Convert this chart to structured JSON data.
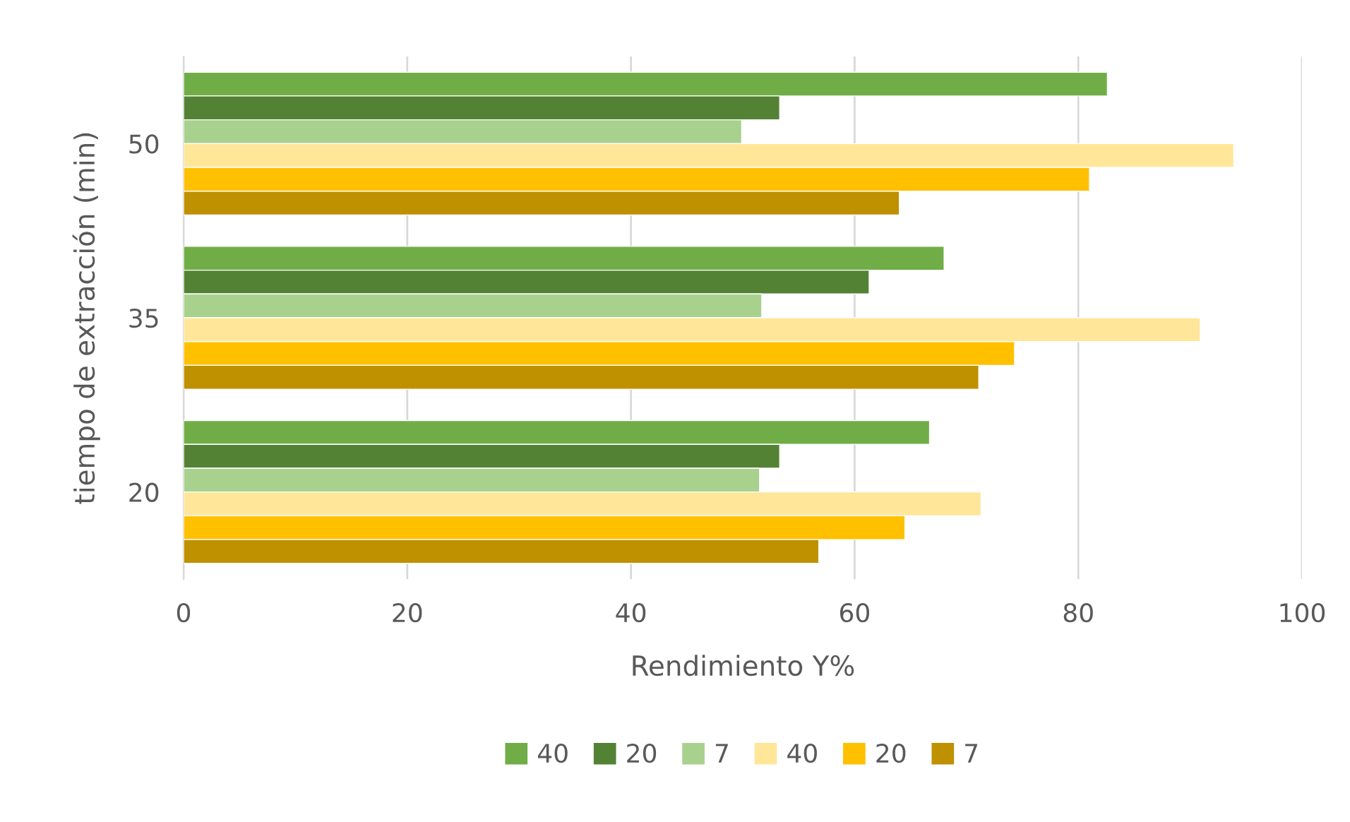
{
  "chart_data": {
    "type": "bar",
    "orientation": "horizontal",
    "xlabel": "Rendimiento Y%",
    "ylabel": "tiempo de extracción (min)",
    "categories": [
      "50",
      "35",
      "20"
    ],
    "series": [
      {
        "name": "40",
        "color": "#70ad47",
        "values": [
          82.6,
          68.0,
          66.7
        ]
      },
      {
        "name": "20",
        "color": "#548235",
        "values": [
          53.3,
          61.3,
          53.3
        ]
      },
      {
        "name": "7",
        "color": "#a9d18e",
        "values": [
          49.9,
          51.7,
          51.5
        ]
      },
      {
        "name": "40",
        "color": "#ffe699",
        "values": [
          93.9,
          90.9,
          71.3
        ]
      },
      {
        "name": "20",
        "color": "#ffc000",
        "values": [
          81.0,
          74.3,
          64.5
        ]
      },
      {
        "name": "7",
        "color": "#bf9000",
        "values": [
          64.0,
          71.1,
          56.8
        ]
      }
    ],
    "xlim": [
      0,
      100
    ],
    "xticks": [
      0,
      20,
      40,
      60,
      80,
      100
    ],
    "grid": "x",
    "legend": "bottom"
  }
}
